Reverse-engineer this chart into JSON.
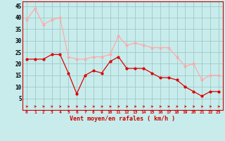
{
  "x": [
    0,
    1,
    2,
    3,
    4,
    5,
    6,
    7,
    8,
    9,
    10,
    11,
    12,
    13,
    14,
    15,
    16,
    17,
    18,
    19,
    20,
    21,
    22,
    23
  ],
  "mean_wind": [
    22,
    22,
    22,
    24,
    24,
    16,
    7,
    15,
    17,
    16,
    21,
    23,
    18,
    18,
    18,
    16,
    14,
    14,
    13,
    10,
    8,
    6,
    8,
    8
  ],
  "gust_wind": [
    39,
    44,
    37,
    39,
    40,
    23,
    22,
    22,
    23,
    23,
    24,
    32,
    28,
    29,
    28,
    27,
    27,
    27,
    23,
    19,
    20,
    13,
    15,
    15
  ],
  "mean_color": "#dd0000",
  "gust_color": "#ffaaaa",
  "background_color": "#c8ecec",
  "grid_color": "#a0c8c8",
  "xlabel": "Vent moyen/en rafales ( km/h )",
  "ylabel_ticks": [
    5,
    10,
    15,
    20,
    25,
    30,
    35,
    40,
    45
  ],
  "ylim": [
    0,
    47
  ],
  "xlim": [
    -0.5,
    23.5
  ],
  "label_color": "#cc0000",
  "axis_color": "#cc0000"
}
